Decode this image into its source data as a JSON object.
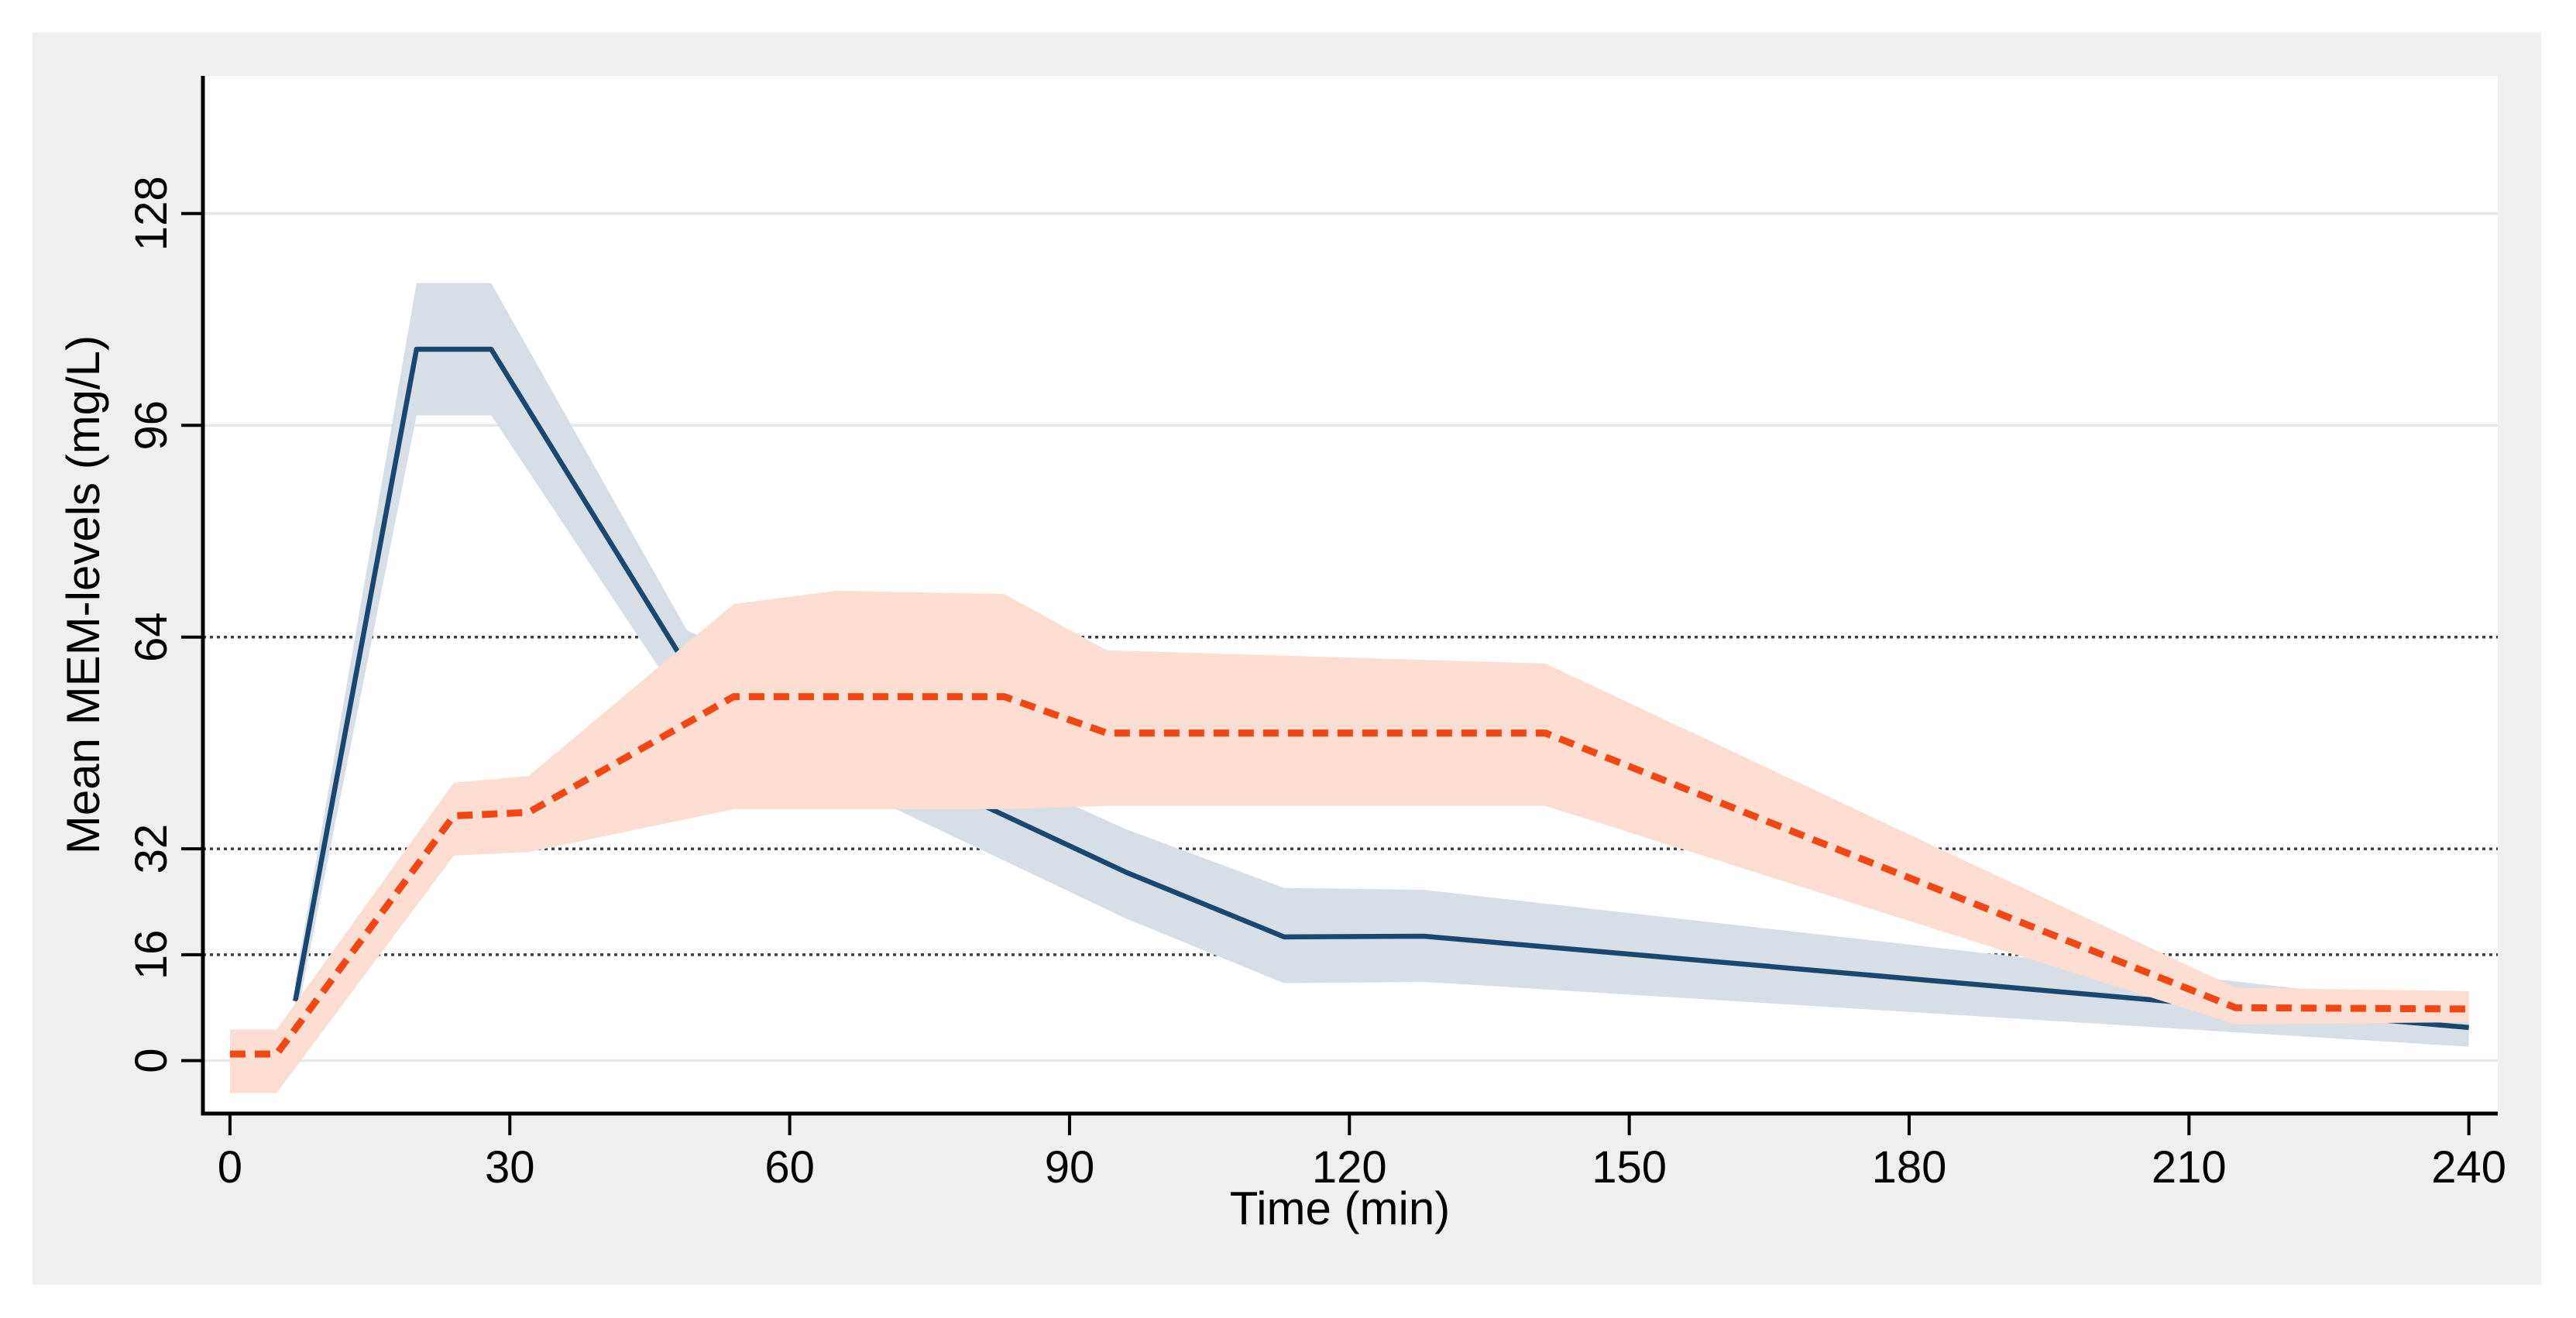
{
  "window": {
    "background": "#ffffff",
    "panel_background": "#efefef",
    "plot_background": "#ffffff",
    "axis_color": "#000000",
    "text_color": "#000000"
  },
  "chart_data": {
    "type": "line",
    "title": "",
    "xlabel": "Time (min)",
    "ylabel": "Mean MEM-levels (mg/L)",
    "x_ticks": [
      0,
      30,
      60,
      90,
      120,
      150,
      180,
      210,
      240
    ],
    "y_ticks": [
      0,
      16,
      32,
      64,
      96,
      128
    ],
    "xlim": [
      -2.9,
      243.1
    ],
    "ylim": [
      -8,
      148.8
    ],
    "legend": "none",
    "grid": {
      "solid_y": [
        0,
        96,
        128
      ],
      "dotted_y": [
        16,
        32,
        64
      ],
      "solid_color": "#e7e7e7",
      "dotted_color": "#3d3d3d"
    },
    "series": [
      {
        "name": "navy-solid-line-with-ci",
        "line_color": "#1a476f",
        "band_color": "#d8dee5",
        "line_style": "solid",
        "x": [
          7,
          20,
          28,
          49,
          96,
          113,
          128,
          240
        ],
        "y": [
          9,
          107.5,
          107.5,
          59.5,
          28.5,
          18.7,
          18.8,
          5
        ],
        "upper": [
          12,
          117.5,
          117.5,
          65,
          35,
          26.1,
          25.8,
          8
        ],
        "lower": [
          5.6,
          97.5,
          97.5,
          53,
          21.5,
          11.7,
          11.9,
          2.1
        ]
      },
      {
        "name": "orange-dashed-line-with-ci",
        "line_color": "#f04715",
        "band_color": "#fbddd2",
        "line_style": "dashed",
        "x": [
          0,
          5,
          24,
          32,
          54,
          65,
          83,
          94,
          141,
          215,
          240
        ],
        "y": [
          1,
          1,
          37,
          37.5,
          55,
          55,
          55,
          49.5,
          49.5,
          8,
          7.8
        ],
        "upper": [
          4.7,
          4.7,
          42,
          43,
          69,
          71,
          70.5,
          62,
          60,
          11,
          10.5
        ],
        "lower": [
          -4.9,
          -4.9,
          31,
          31.5,
          38,
          38,
          38,
          38.5,
          38.5,
          5.5,
          5.8
        ]
      }
    ]
  }
}
